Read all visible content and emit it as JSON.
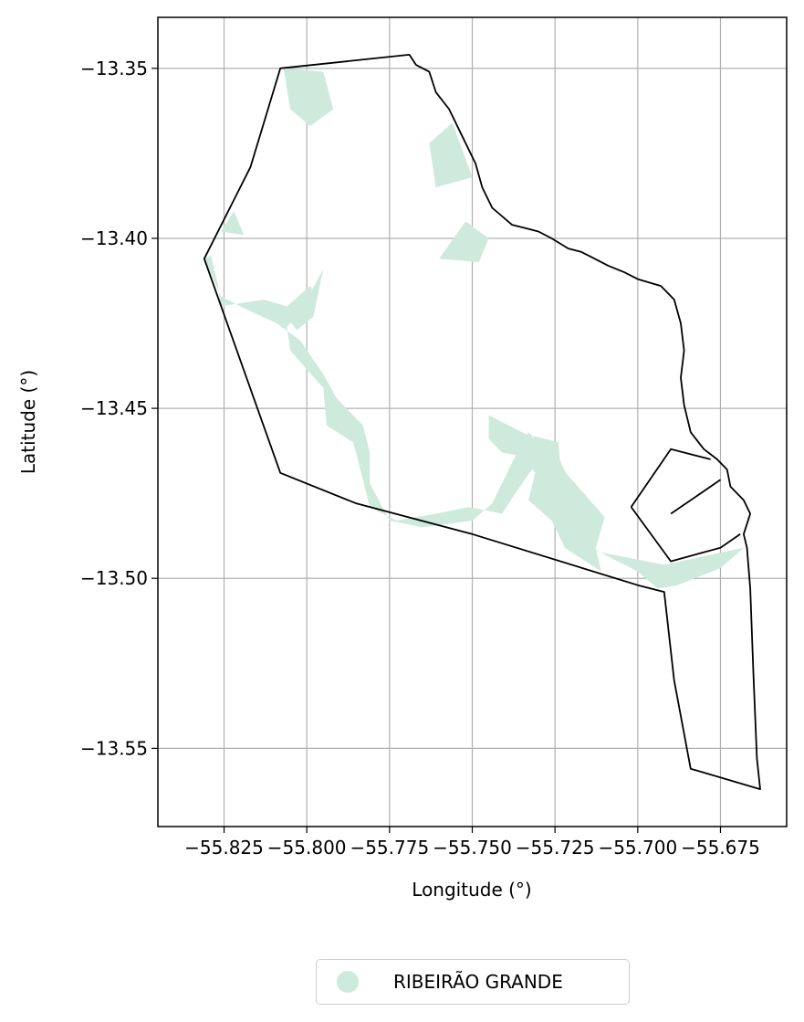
{
  "chart_data": {
    "type": "map",
    "xlabel": "Longitude (°)",
    "ylabel": "Latitude (°)",
    "xlim": [
      -55.845,
      -55.655
    ],
    "ylim": [
      -13.573,
      -13.335
    ],
    "grid": true,
    "xticks": [
      -55.825,
      -55.8,
      -55.775,
      -55.75,
      -55.725,
      -55.7,
      -55.675
    ],
    "xtick_labels": [
      "−55.825",
      "−55.800",
      "−55.775",
      "−55.750",
      "−55.725",
      "−55.700",
      "−55.675"
    ],
    "yticks": [
      -13.35,
      -13.4,
      -13.45,
      -13.5,
      -13.55
    ],
    "ytick_labels": [
      "−13.35",
      "−13.40",
      "−13.45",
      "−13.50",
      "−13.55"
    ],
    "legend": {
      "position": "bottom-center",
      "items": [
        {
          "label": "RIBEIRÃO GRANDE",
          "color": "#cdeadc"
        }
      ]
    },
    "fill_color": "#cdeadc",
    "boundary_color": "#000000",
    "boundary": [
      [
        -55.808,
        -13.35
      ],
      [
        -55.769,
        -13.346
      ],
      [
        -55.767,
        -13.349
      ],
      [
        -55.763,
        -13.351
      ],
      [
        -55.761,
        -13.357
      ],
      [
        -55.757,
        -13.362
      ],
      [
        -55.753,
        -13.37
      ],
      [
        -55.749,
        -13.378
      ],
      [
        -55.747,
        -13.385
      ],
      [
        -55.744,
        -13.391
      ],
      [
        -55.738,
        -13.396
      ],
      [
        -55.734,
        -13.397
      ],
      [
        -55.73,
        -13.398
      ],
      [
        -55.726,
        -13.4
      ],
      [
        -55.721,
        -13.403
      ],
      [
        -55.717,
        -13.404
      ],
      [
        -55.713,
        -13.406
      ],
      [
        -55.709,
        -13.408
      ],
      [
        -55.704,
        -13.41
      ],
      [
        -55.7,
        -13.412
      ],
      [
        -55.693,
        -13.414
      ],
      [
        -55.689,
        -13.418
      ],
      [
        -55.687,
        -13.425
      ],
      [
        -55.686,
        -13.433
      ],
      [
        -55.687,
        -13.441
      ],
      [
        -55.686,
        -13.449
      ],
      [
        -55.684,
        -13.457
      ],
      [
        -55.68,
        -13.462
      ],
      [
        -55.676,
        -13.465
      ],
      [
        -55.673,
        -13.468
      ],
      [
        -55.672,
        -13.473
      ],
      [
        -55.668,
        -13.477
      ],
      [
        -55.666,
        -13.481
      ],
      [
        -55.668,
        -13.487
      ],
      [
        -55.667,
        -13.491
      ],
      [
        -55.666,
        -13.503
      ],
      [
        -55.665,
        -13.529
      ],
      [
        -55.664,
        -13.553
      ],
      [
        -55.663,
        -13.562
      ],
      [
        -55.684,
        -13.556
      ],
      [
        -55.689,
        -13.53
      ],
      [
        -55.692,
        -13.504
      ],
      [
        -55.7,
        -13.502
      ],
      [
        -55.75,
        -13.487
      ],
      [
        -55.785,
        -13.478
      ],
      [
        -55.808,
        -13.469
      ],
      [
        -55.831,
        -13.406
      ],
      [
        -55.817,
        -13.379
      ],
      [
        -55.808,
        -13.35
      ]
    ],
    "inner_lines": [
      [
        [
          -55.702,
          -13.479
        ],
        [
          -55.69,
          -13.462
        ],
        [
          -55.678,
          -13.465
        ]
      ],
      [
        [
          -55.69,
          -13.481
        ],
        [
          -55.675,
          -13.471
        ]
      ],
      [
        [
          -55.702,
          -13.479
        ],
        [
          -55.69,
          -13.495
        ],
        [
          -55.675,
          -13.491
        ],
        [
          -55.669,
          -13.487
        ]
      ]
    ],
    "regions": [
      [
        [
          -55.807,
          -13.35
        ],
        [
          -55.795,
          -13.351
        ],
        [
          -55.792,
          -13.362
        ],
        [
          -55.799,
          -13.367
        ],
        [
          -55.805,
          -13.362
        ]
      ],
      [
        [
          -55.763,
          -13.372
        ],
        [
          -55.756,
          -13.366
        ],
        [
          -55.75,
          -13.382
        ],
        [
          -55.761,
          -13.385
        ]
      ],
      [
        [
          -55.76,
          -13.406
        ],
        [
          -55.748,
          -13.407
        ],
        [
          -55.745,
          -13.4
        ],
        [
          -55.752,
          -13.395
        ]
      ],
      [
        [
          -55.829,
          -13.405
        ],
        [
          -55.827,
          -13.413
        ],
        [
          -55.826,
          -13.42
        ],
        [
          -55.813,
          -13.418
        ],
        [
          -55.806,
          -13.42
        ],
        [
          -55.799,
          -13.414
        ],
        [
          -55.797,
          -13.417
        ],
        [
          -55.806,
          -13.426
        ],
        [
          -55.805,
          -13.433
        ],
        [
          -55.795,
          -13.444
        ],
        [
          -55.794,
          -13.455
        ],
        [
          -55.786,
          -13.46
        ],
        [
          -55.783,
          -13.471
        ],
        [
          -55.781,
          -13.479
        ],
        [
          -55.773,
          -13.483
        ],
        [
          -55.761,
          -13.481
        ],
        [
          -55.751,
          -13.479
        ],
        [
          -55.741,
          -13.481
        ],
        [
          -55.737,
          -13.475
        ],
        [
          -55.732,
          -13.468
        ],
        [
          -55.732,
          -13.458
        ],
        [
          -55.724,
          -13.46
        ],
        [
          -55.722,
          -13.482
        ],
        [
          -55.714,
          -13.491
        ],
        [
          -55.7,
          -13.498
        ],
        [
          -55.694,
          -13.503
        ],
        [
          -55.688,
          -13.502
        ],
        [
          -55.675,
          -13.497
        ],
        [
          -55.668,
          -13.491
        ],
        [
          -55.692,
          -13.496
        ],
        [
          -55.713,
          -13.492
        ],
        [
          -55.71,
          -13.482
        ],
        [
          -55.728,
          -13.462
        ],
        [
          -55.733,
          -13.457
        ],
        [
          -55.738,
          -13.466
        ],
        [
          -55.744,
          -13.478
        ],
        [
          -55.75,
          -13.483
        ],
        [
          -55.765,
          -13.485
        ],
        [
          -55.775,
          -13.483
        ],
        [
          -55.781,
          -13.472
        ],
        [
          -55.781,
          -13.463
        ],
        [
          -55.783,
          -13.455
        ],
        [
          -55.791,
          -13.447
        ],
        [
          -55.795,
          -13.44
        ],
        [
          -55.802,
          -13.43
        ],
        [
          -55.809,
          -13.425
        ],
        [
          -55.818,
          -13.421
        ],
        [
          -55.826,
          -13.417
        ],
        [
          -55.831,
          -13.406
        ]
      ],
      [
        [
          -55.807,
          -13.422
        ],
        [
          -55.8,
          -13.418
        ],
        [
          -55.795,
          -13.409
        ],
        [
          -55.798,
          -13.423
        ],
        [
          -55.803,
          -13.427
        ]
      ],
      [
        [
          -55.826,
          -13.398
        ],
        [
          -55.819,
          -13.399
        ],
        [
          -55.822,
          -13.392
        ]
      ],
      [
        [
          -55.745,
          -13.452
        ],
        [
          -55.745,
          -13.459
        ],
        [
          -55.741,
          -13.463
        ],
        [
          -55.735,
          -13.464
        ],
        [
          -55.731,
          -13.469
        ],
        [
          -55.733,
          -13.477
        ],
        [
          -55.726,
          -13.483
        ],
        [
          -55.722,
          -13.491
        ],
        [
          -55.711,
          -13.498
        ],
        [
          -55.714,
          -13.486
        ],
        [
          -55.718,
          -13.477
        ],
        [
          -55.725,
          -13.462
        ]
      ]
    ]
  }
}
